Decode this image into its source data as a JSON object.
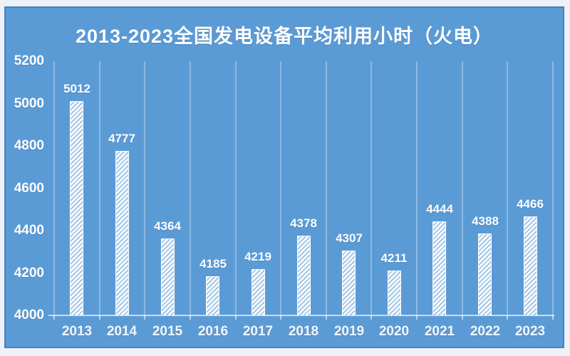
{
  "title": "2013-2023全国发电设备平均利用小时（火电）",
  "colors": {
    "page_bg": "#eef1f8",
    "panel_bg": "#5b9bd5",
    "panel_border": "rgba(23,62,105,0.28)",
    "text": "#ffffff",
    "gridline": "rgba(255,255,255,0.30)",
    "axis_line": "rgba(255,255,255,0.65)",
    "bar_hatch_white": "#ffffff",
    "bar_hatch_blue": "#a3c6e8"
  },
  "chart_data": {
    "type": "bar",
    "title": "2013-2023全国发电设备平均利用小时（火电）",
    "categories": [
      "2013",
      "2014",
      "2015",
      "2016",
      "2017",
      "2018",
      "2019",
      "2020",
      "2021",
      "2022",
      "2023"
    ],
    "values": [
      5012,
      4777,
      4364,
      4185,
      4219,
      4378,
      4307,
      4211,
      4444,
      4388,
      4466
    ],
    "data_labels_shown": true,
    "xlabel": "",
    "ylabel": "",
    "ylim": [
      4000,
      5200
    ],
    "yticks": [
      5200,
      5000,
      4800,
      4600,
      4400,
      4200,
      4000
    ],
    "grid": "vertical-only",
    "legend": "none",
    "bar_style": "white-diagonal-hatch-on-blue"
  }
}
